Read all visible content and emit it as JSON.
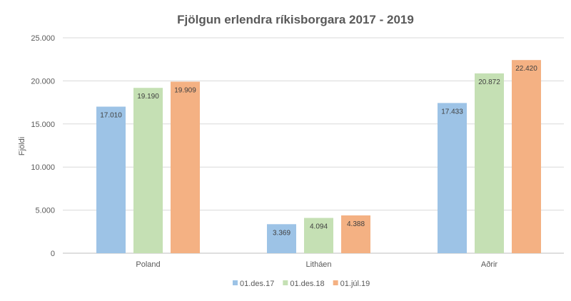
{
  "chart_data": {
    "type": "bar",
    "title": "Fjölgun erlendra ríkisborgara 2017 - 2019",
    "xlabel": "",
    "ylabel": "Fjöldi",
    "ylim": [
      0,
      25000
    ],
    "yticks": [
      0,
      5000,
      10000,
      15000,
      20000,
      25000
    ],
    "ytick_labels": [
      "0",
      "5.000",
      "10.000",
      "15.000",
      "20.000",
      "25.000"
    ],
    "grid": true,
    "legend_position": "bottom",
    "categories": [
      "Poland",
      "Litháen",
      "Aðrir"
    ],
    "series": [
      {
        "name": "01.des.17",
        "color": "#9DC3E6",
        "values": [
          17010,
          3369,
          17433
        ],
        "labels": [
          "17.010",
          "3.369",
          "17.433"
        ]
      },
      {
        "name": "01.des.18",
        "color": "#C5E0B4",
        "values": [
          19190,
          4094,
          20872
        ],
        "labels": [
          "19.190",
          "4.094",
          "20.872"
        ]
      },
      {
        "name": "01.júl.19",
        "color": "#F4B183",
        "values": [
          19909,
          4388,
          22420
        ],
        "labels": [
          "19.909",
          "4.388",
          "22.420"
        ]
      }
    ]
  }
}
